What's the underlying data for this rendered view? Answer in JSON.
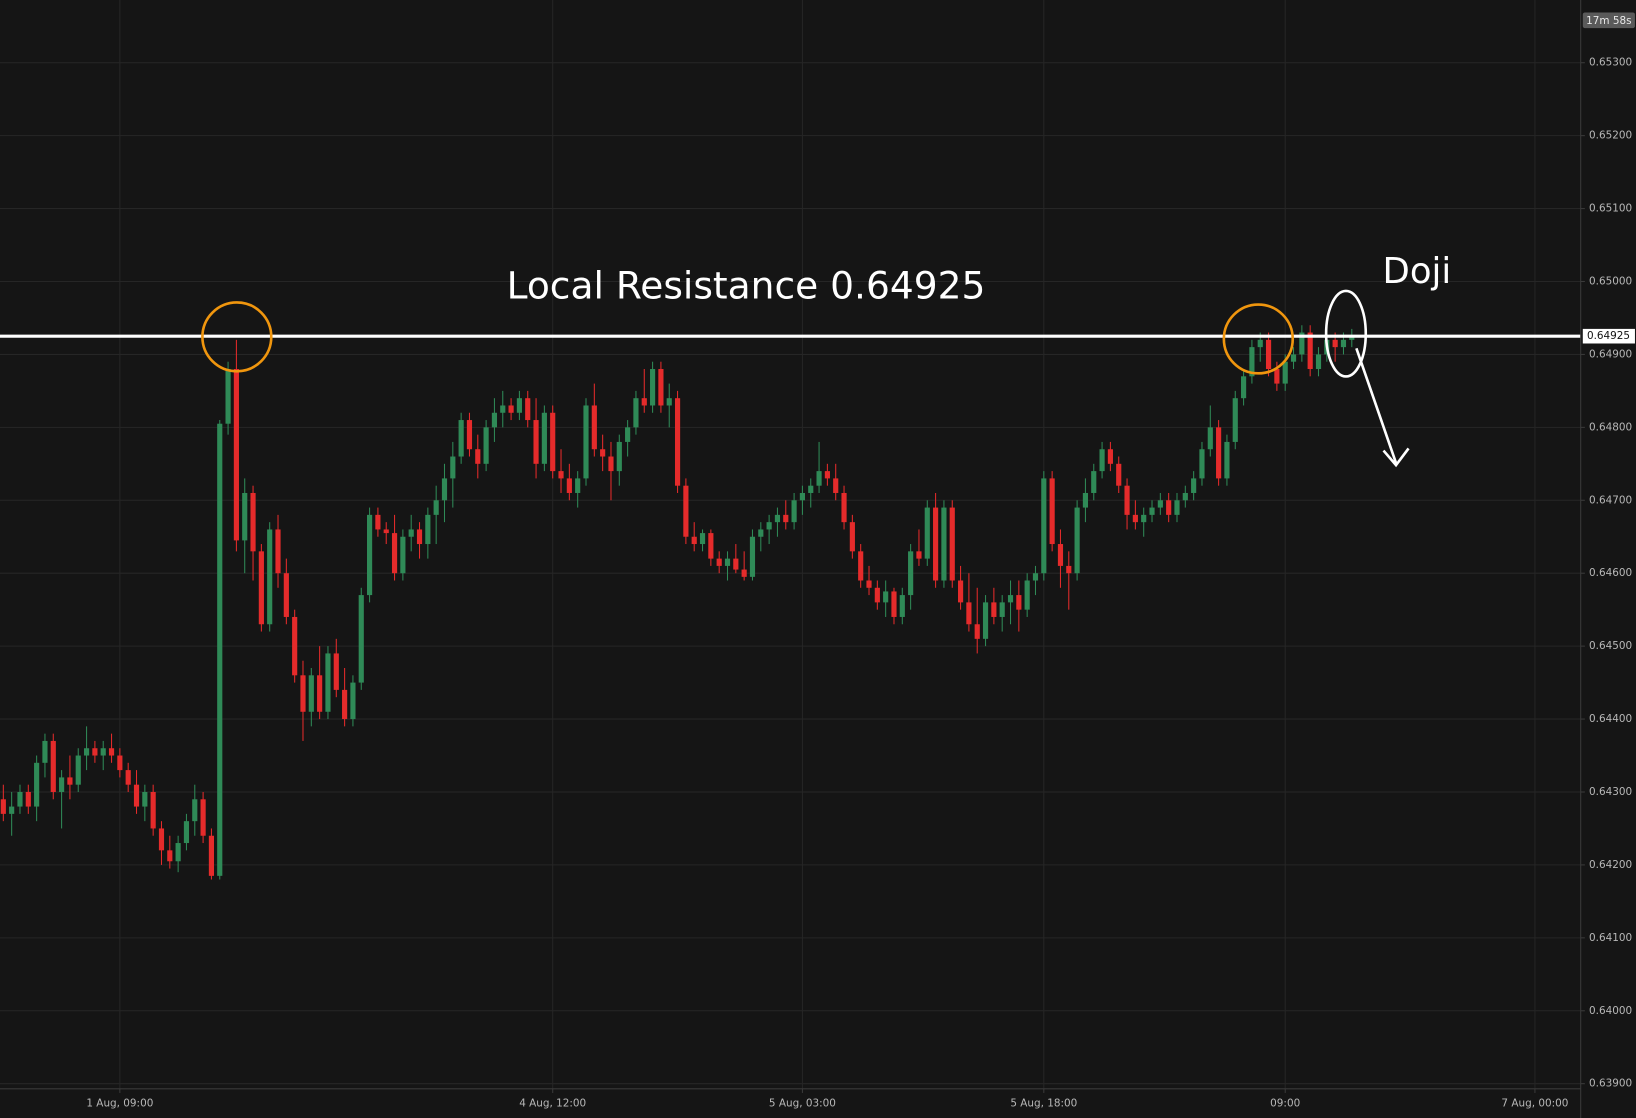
{
  "chart_data": {
    "type": "candlestick",
    "annotation": "Local Resistance 0.64925",
    "pattern_label": "Doji",
    "timer": "17m 58s",
    "resistance": 0.64925,
    "up_color": "#2f8a57",
    "down_color": "#e52b2b",
    "grid": true,
    "xlim": [
      -0.4,
      189.5
    ],
    "xticks": [
      {
        "value": 14,
        "label": "1 Aug, 09:00"
      },
      {
        "value": 66,
        "label": "4 Aug, 12:00"
      },
      {
        "value": 96,
        "label": "5 Aug, 03:00"
      },
      {
        "value": 125,
        "label": "5 Aug, 18:00"
      },
      {
        "value": 154,
        "label": "09:00"
      },
      {
        "value": 184,
        "label": "7 Aug, 00:00"
      }
    ],
    "ylim": [
      0.63893,
      0.65386
    ],
    "yticks": [
      {
        "value": 0.639,
        "label": "0.63900"
      },
      {
        "value": 0.64,
        "label": "0.64000"
      },
      {
        "value": 0.641,
        "label": "0.64100"
      },
      {
        "value": 0.642,
        "label": "0.64200"
      },
      {
        "value": 0.643,
        "label": "0.64300"
      },
      {
        "value": 0.644,
        "label": "0.64400"
      },
      {
        "value": 0.645,
        "label": "0.64500"
      },
      {
        "value": 0.646,
        "label": "0.64600"
      },
      {
        "value": 0.647,
        "label": "0.64700"
      },
      {
        "value": 0.648,
        "label": "0.64800"
      },
      {
        "value": 0.649,
        "label": "0.64900"
      },
      {
        "value": 0.65,
        "label": "0.65000"
      },
      {
        "value": 0.651,
        "label": "0.65100"
      },
      {
        "value": 0.652,
        "label": "0.65200"
      },
      {
        "value": 0.653,
        "label": "0.65300"
      }
    ],
    "ohlc": [
      [
        0.6429,
        0.6431,
        0.6426,
        0.6427
      ],
      [
        0.6427,
        0.643,
        0.6424,
        0.6428
      ],
      [
        0.6428,
        0.6431,
        0.6427,
        0.643
      ],
      [
        0.643,
        0.6431,
        0.6427,
        0.6428
      ],
      [
        0.6428,
        0.6435,
        0.6426,
        0.6434
      ],
      [
        0.6434,
        0.6438,
        0.6432,
        0.6437
      ],
      [
        0.6437,
        0.6438,
        0.6429,
        0.643
      ],
      [
        0.643,
        0.6433,
        0.6425,
        0.6432
      ],
      [
        0.6432,
        0.6435,
        0.6429,
        0.6431
      ],
      [
        0.6431,
        0.6436,
        0.643,
        0.6435
      ],
      [
        0.6435,
        0.6439,
        0.6433,
        0.6436
      ],
      [
        0.6436,
        0.6437,
        0.6434,
        0.6435
      ],
      [
        0.6435,
        0.6437,
        0.6433,
        0.6436
      ],
      [
        0.6436,
        0.6438,
        0.6434,
        0.6435
      ],
      [
        0.6435,
        0.6436,
        0.6432,
        0.6433
      ],
      [
        0.6433,
        0.6434,
        0.643,
        0.6431
      ],
      [
        0.6431,
        0.6433,
        0.6427,
        0.6428
      ],
      [
        0.6428,
        0.6431,
        0.6426,
        0.643
      ],
      [
        0.643,
        0.6431,
        0.6424,
        0.6425
      ],
      [
        0.6425,
        0.6426,
        0.642,
        0.6422
      ],
      [
        0.6422,
        0.6424,
        0.64195,
        0.64205
      ],
      [
        0.64205,
        0.6424,
        0.6419,
        0.6423
      ],
      [
        0.6423,
        0.6427,
        0.6422,
        0.6426
      ],
      [
        0.6426,
        0.6431,
        0.6424,
        0.6429
      ],
      [
        0.6429,
        0.643,
        0.6423,
        0.6424
      ],
      [
        0.6424,
        0.6425,
        0.6418,
        0.64185
      ],
      [
        0.64185,
        0.6481,
        0.6418,
        0.64805
      ],
      [
        0.64805,
        0.6489,
        0.6479,
        0.6488
      ],
      [
        0.6488,
        0.6492,
        0.6463,
        0.64645
      ],
      [
        0.64645,
        0.6473,
        0.646,
        0.6471
      ],
      [
        0.6471,
        0.6472,
        0.6459,
        0.6463
      ],
      [
        0.6463,
        0.6464,
        0.6452,
        0.6453
      ],
      [
        0.6453,
        0.6467,
        0.6452,
        0.6466
      ],
      [
        0.6466,
        0.6468,
        0.6458,
        0.646
      ],
      [
        0.646,
        0.6462,
        0.6453,
        0.6454
      ],
      [
        0.6454,
        0.6455,
        0.6445,
        0.6446
      ],
      [
        0.6446,
        0.6448,
        0.6437,
        0.6441
      ],
      [
        0.6441,
        0.6447,
        0.6439,
        0.6446
      ],
      [
        0.6446,
        0.645,
        0.644,
        0.6441
      ],
      [
        0.6441,
        0.645,
        0.644,
        0.6449
      ],
      [
        0.6449,
        0.6451,
        0.6443,
        0.6444
      ],
      [
        0.6444,
        0.6447,
        0.6439,
        0.644
      ],
      [
        0.644,
        0.6446,
        0.6439,
        0.6445
      ],
      [
        0.6445,
        0.6458,
        0.6444,
        0.6457
      ],
      [
        0.6457,
        0.6469,
        0.6456,
        0.6468
      ],
      [
        0.6468,
        0.6469,
        0.6465,
        0.6466
      ],
      [
        0.6466,
        0.6467,
        0.6464,
        0.64655
      ],
      [
        0.64655,
        0.6468,
        0.6459,
        0.646
      ],
      [
        0.646,
        0.6466,
        0.6459,
        0.6465
      ],
      [
        0.6465,
        0.6468,
        0.6463,
        0.6466
      ],
      [
        0.6466,
        0.6467,
        0.6462,
        0.6464
      ],
      [
        0.6464,
        0.6469,
        0.6462,
        0.6468
      ],
      [
        0.6468,
        0.6472,
        0.6464,
        0.647
      ],
      [
        0.647,
        0.6475,
        0.6467,
        0.6473
      ],
      [
        0.6473,
        0.6478,
        0.6469,
        0.6476
      ],
      [
        0.6476,
        0.6482,
        0.6475,
        0.6481
      ],
      [
        0.6481,
        0.6482,
        0.6476,
        0.6477
      ],
      [
        0.6477,
        0.6479,
        0.6473,
        0.6475
      ],
      [
        0.6475,
        0.6481,
        0.6474,
        0.648
      ],
      [
        0.648,
        0.6484,
        0.6478,
        0.6482
      ],
      [
        0.6482,
        0.6485,
        0.648,
        0.6483
      ],
      [
        0.6483,
        0.6484,
        0.6481,
        0.6482
      ],
      [
        0.6482,
        0.6485,
        0.6481,
        0.6484
      ],
      [
        0.6484,
        0.6485,
        0.648,
        0.6481
      ],
      [
        0.6481,
        0.6484,
        0.6473,
        0.6475
      ],
      [
        0.6475,
        0.6483,
        0.6474,
        0.6482
      ],
      [
        0.6482,
        0.6483,
        0.6473,
        0.6474
      ],
      [
        0.6474,
        0.6477,
        0.6471,
        0.6473
      ],
      [
        0.6473,
        0.6475,
        0.647,
        0.6471
      ],
      [
        0.6471,
        0.6474,
        0.6469,
        0.6473
      ],
      [
        0.6473,
        0.6484,
        0.6472,
        0.6483
      ],
      [
        0.6483,
        0.6486,
        0.6476,
        0.6477
      ],
      [
        0.6477,
        0.6479,
        0.6474,
        0.6476
      ],
      [
        0.6476,
        0.6478,
        0.647,
        0.6474
      ],
      [
        0.6474,
        0.6479,
        0.6472,
        0.6478
      ],
      [
        0.6478,
        0.6481,
        0.6476,
        0.648
      ],
      [
        0.648,
        0.6485,
        0.6479,
        0.6484
      ],
      [
        0.6484,
        0.6488,
        0.6482,
        0.6483
      ],
      [
        0.6483,
        0.6489,
        0.6482,
        0.6488
      ],
      [
        0.6488,
        0.6489,
        0.6482,
        0.6483
      ],
      [
        0.6483,
        0.6486,
        0.648,
        0.6484
      ],
      [
        0.6484,
        0.6485,
        0.6471,
        0.6472
      ],
      [
        0.6472,
        0.6473,
        0.6464,
        0.6465
      ],
      [
        0.6465,
        0.6467,
        0.6463,
        0.6464
      ],
      [
        0.6464,
        0.6466,
        0.6463,
        0.64655
      ],
      [
        0.64655,
        0.6466,
        0.6461,
        0.6462
      ],
      [
        0.6462,
        0.6463,
        0.646,
        0.6461
      ],
      [
        0.6461,
        0.6463,
        0.6459,
        0.6462
      ],
      [
        0.6462,
        0.6464,
        0.646,
        0.64605
      ],
      [
        0.64605,
        0.6463,
        0.6459,
        0.64595
      ],
      [
        0.64595,
        0.6466,
        0.6459,
        0.6465
      ],
      [
        0.6465,
        0.6467,
        0.6463,
        0.6466
      ],
      [
        0.6466,
        0.6468,
        0.6464,
        0.6467
      ],
      [
        0.6467,
        0.6469,
        0.6465,
        0.6468
      ],
      [
        0.6468,
        0.647,
        0.6466,
        0.6467
      ],
      [
        0.6467,
        0.6471,
        0.6466,
        0.647
      ],
      [
        0.647,
        0.6472,
        0.6468,
        0.6471
      ],
      [
        0.6471,
        0.6473,
        0.6469,
        0.6472
      ],
      [
        0.6472,
        0.6478,
        0.6471,
        0.6474
      ],
      [
        0.6474,
        0.6475,
        0.6472,
        0.6473
      ],
      [
        0.6473,
        0.6475,
        0.647,
        0.6471
      ],
      [
        0.6471,
        0.6472,
        0.6466,
        0.6467
      ],
      [
        0.6467,
        0.6468,
        0.6462,
        0.6463
      ],
      [
        0.6463,
        0.6464,
        0.6458,
        0.6459
      ],
      [
        0.6459,
        0.6461,
        0.6457,
        0.6458
      ],
      [
        0.6458,
        0.6459,
        0.6455,
        0.6456
      ],
      [
        0.6456,
        0.6459,
        0.6454,
        0.64575
      ],
      [
        0.64575,
        0.6458,
        0.6453,
        0.6454
      ],
      [
        0.6454,
        0.6458,
        0.6453,
        0.6457
      ],
      [
        0.6457,
        0.6464,
        0.6455,
        0.6463
      ],
      [
        0.6463,
        0.6466,
        0.6461,
        0.6462
      ],
      [
        0.6462,
        0.647,
        0.6461,
        0.6469
      ],
      [
        0.6469,
        0.6471,
        0.6458,
        0.6459
      ],
      [
        0.6459,
        0.647,
        0.6458,
        0.6469
      ],
      [
        0.6469,
        0.647,
        0.6458,
        0.6459
      ],
      [
        0.6459,
        0.6461,
        0.6455,
        0.6456
      ],
      [
        0.6456,
        0.646,
        0.6452,
        0.6453
      ],
      [
        0.6453,
        0.6458,
        0.6449,
        0.6451
      ],
      [
        0.6451,
        0.6457,
        0.645,
        0.6456
      ],
      [
        0.6456,
        0.6458,
        0.6453,
        0.6454
      ],
      [
        0.6454,
        0.6457,
        0.6452,
        0.6456
      ],
      [
        0.6456,
        0.6459,
        0.6453,
        0.6457
      ],
      [
        0.6457,
        0.6459,
        0.6452,
        0.6455
      ],
      [
        0.6455,
        0.646,
        0.6454,
        0.6459
      ],
      [
        0.6459,
        0.6461,
        0.6457,
        0.646
      ],
      [
        0.646,
        0.6474,
        0.6459,
        0.6473
      ],
      [
        0.6473,
        0.6474,
        0.6463,
        0.6464
      ],
      [
        0.6464,
        0.6466,
        0.6458,
        0.6461
      ],
      [
        0.6461,
        0.6463,
        0.6455,
        0.646
      ],
      [
        0.646,
        0.647,
        0.6459,
        0.6469
      ],
      [
        0.6469,
        0.6473,
        0.6467,
        0.6471
      ],
      [
        0.6471,
        0.6475,
        0.647,
        0.6474
      ],
      [
        0.6474,
        0.6478,
        0.6473,
        0.6477
      ],
      [
        0.6477,
        0.6478,
        0.6474,
        0.6475
      ],
      [
        0.6475,
        0.6476,
        0.6471,
        0.6472
      ],
      [
        0.6472,
        0.6473,
        0.6466,
        0.6468
      ],
      [
        0.6468,
        0.647,
        0.6466,
        0.6467
      ],
      [
        0.6467,
        0.6469,
        0.6465,
        0.6468
      ],
      [
        0.6468,
        0.647,
        0.6467,
        0.6469
      ],
      [
        0.6469,
        0.6471,
        0.6468,
        0.647
      ],
      [
        0.647,
        0.6471,
        0.6467,
        0.6468
      ],
      [
        0.6468,
        0.6471,
        0.6467,
        0.647
      ],
      [
        0.647,
        0.6472,
        0.6469,
        0.6471
      ],
      [
        0.6471,
        0.6474,
        0.647,
        0.6473
      ],
      [
        0.6473,
        0.6478,
        0.6472,
        0.6477
      ],
      [
        0.6477,
        0.6483,
        0.6476,
        0.648
      ],
      [
        0.648,
        0.6481,
        0.6472,
        0.6473
      ],
      [
        0.6473,
        0.6479,
        0.6472,
        0.6478
      ],
      [
        0.6478,
        0.6485,
        0.6477,
        0.6484
      ],
      [
        0.6484,
        0.6488,
        0.6483,
        0.6487
      ],
      [
        0.6487,
        0.6492,
        0.6486,
        0.6491
      ],
      [
        0.6491,
        0.6493,
        0.6489,
        0.6492
      ],
      [
        0.6492,
        0.6493,
        0.6487,
        0.6488
      ],
      [
        0.6488,
        0.6489,
        0.6485,
        0.6486
      ],
      [
        0.6486,
        0.649,
        0.6485,
        0.6489
      ],
      [
        0.6489,
        0.6491,
        0.6488,
        0.649
      ],
      [
        0.649,
        0.6494,
        0.6489,
        0.6493
      ],
      [
        0.6493,
        0.6494,
        0.6487,
        0.6488
      ],
      [
        0.6488,
        0.6491,
        0.6487,
        0.649
      ],
      [
        0.649,
        0.6493,
        0.6489,
        0.6492
      ],
      [
        0.6492,
        0.6493,
        0.6489,
        0.6491
      ],
      [
        0.6491,
        0.6493,
        0.649,
        0.6492
      ],
      [
        0.6492,
        0.64935,
        0.6491,
        0.64925
      ]
    ]
  }
}
